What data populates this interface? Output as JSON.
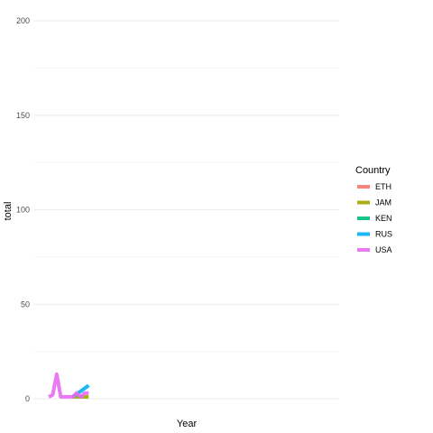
{
  "chart_data": {
    "type": "line",
    "title": "",
    "xlabel": "Year",
    "ylabel": "total",
    "ylim": [
      0,
      200
    ],
    "xlim": [
      1896,
      2016
    ],
    "y_ticks": [
      0,
      50,
      100,
      150,
      200
    ],
    "grid": true,
    "legend": {
      "title": "Country",
      "placement": "right"
    },
    "series": [
      {
        "name": "ETH",
        "color": "#F8766D",
        "x": [],
        "y": []
      },
      {
        "name": "JAM",
        "color": "#A3A500",
        "x": [
          1908,
          1912,
          1916
        ],
        "y": [
          1,
          1,
          1
        ]
      },
      {
        "name": "KEN",
        "color": "#00BF7D",
        "x": [],
        "y": []
      },
      {
        "name": "RUS",
        "color": "#00B0F6",
        "x": [
          1908,
          1912,
          1916
        ],
        "y": [
          1,
          4,
          7
        ]
      },
      {
        "name": "USA",
        "color": "#E76BF3",
        "x": [
          1896,
          1898,
          1900,
          1902,
          1904,
          1906,
          1908,
          1910,
          1912,
          1914,
          1916
        ],
        "y": [
          1,
          2,
          13,
          1,
          1,
          1,
          1,
          3,
          1,
          3,
          3
        ]
      }
    ]
  }
}
